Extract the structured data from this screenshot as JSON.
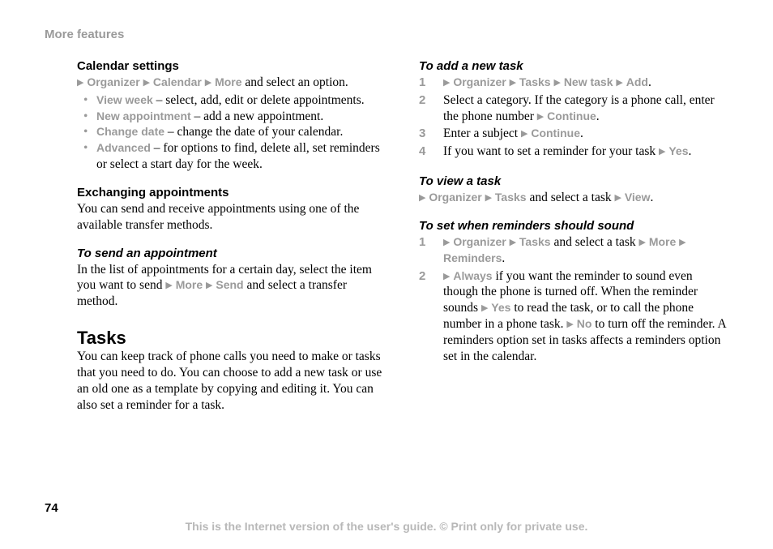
{
  "header": {
    "title": "More features"
  },
  "left": {
    "calSettings": {
      "heading": "Calendar settings",
      "navPre": "} ",
      "navOrganizer": "Organizer",
      "navCalendar": "Calendar",
      "navMore": "More",
      "navTail": " and select an option.",
      "bullets": {
        "viewWeek": {
          "label": "View week",
          "desc": " – select, add, edit or delete appointments."
        },
        "newAppt": {
          "label": "New appointment",
          "desc": " – add a new appointment."
        },
        "changeDate": {
          "label": "Change date",
          "desc": " – change the date of your calendar."
        },
        "advanced": {
          "label": "Advanced",
          "desc": " – for options to find, delete all, set reminders or select a start day for the week."
        }
      }
    },
    "exchanging": {
      "heading": "Exchanging appointments",
      "body": "You can send and receive appointments using one of the available transfer methods."
    },
    "toSend": {
      "heading": "To send an appointment",
      "pre": "In the list of appointments for a certain day, select the item you want to send ",
      "more": "More",
      "send": "Send",
      "tail": " and select a transfer method."
    },
    "tasks": {
      "heading": "Tasks",
      "body": "You can keep track of phone calls you need to make or tasks that you need to do. You can choose to add a new task or use an old one as a template by copying and editing it. You can also set a reminder for a task."
    }
  },
  "right": {
    "toAdd": {
      "heading": "To add a new task",
      "step1": {
        "organizer": "Organizer",
        "tasks": "Tasks",
        "newtask": "New task",
        "add": "Add",
        "dot": "."
      },
      "step2": {
        "pre": "Select a category. If the category is a phone call, enter the phone number ",
        "cont": "Continue",
        "dot": "."
      },
      "step3": {
        "pre": "Enter a subject ",
        "cont": "Continue",
        "dot": "."
      },
      "step4": {
        "pre": "If you want to set a reminder for your task ",
        "yes": "Yes",
        "dot": "."
      }
    },
    "toView": {
      "heading": "To view a task",
      "organizer": "Organizer",
      "tasks": "Tasks",
      "mid": " and select a task ",
      "view": "View",
      "dot": "."
    },
    "toSet": {
      "heading": "To set when reminders should sound",
      "step1": {
        "organizer": "Organizer",
        "tasks": "Tasks",
        "mid": " and select a task ",
        "more": "More",
        "reminders": "Reminders",
        "dot": "."
      },
      "step2": {
        "always": "Always",
        "t1": " if you want the reminder to sound even though the phone is turned off. When the reminder sounds ",
        "yes": "Yes",
        "t2": " to read the task, or to call the phone number in a phone task. ",
        "no": "No",
        "t3": " to turn off the reminder. A reminders option set in tasks affects a reminders option set in the calendar."
      }
    }
  },
  "footer": {
    "pageNum": "74",
    "note": "This is the Internet version of the user's guide. © Print only for private use."
  },
  "glyphs": {
    "triangle": "▶"
  }
}
